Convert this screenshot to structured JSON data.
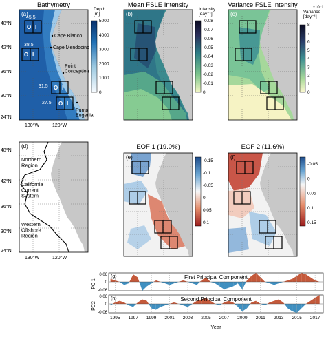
{
  "panels": {
    "a": {
      "letter": "(a)",
      "title": "Bathymetry",
      "cbar_label": "Depth\n[m]",
      "ticks": [
        "5000",
        "4000",
        "3000",
        "2000",
        "1000",
        "0"
      ]
    },
    "b": {
      "letter": "(b)",
      "title": "Mean FSLE Intensity",
      "cbar_label": "Intensity\n[day⁻¹]",
      "ticks": [
        "-0.08",
        "-0.07",
        "-0.06",
        "-0.05",
        "-0.04",
        "-0.03",
        "-0.02",
        "-0.01",
        "0"
      ]
    },
    "c": {
      "letter": "(c)",
      "title": "Variance FSLE Intensity",
      "cbar_label": "Variance\n[day⁻¹]",
      "exponent": "x10⁻³",
      "ticks": [
        "8",
        "7",
        "6",
        "5",
        "4",
        "3",
        "2",
        "1",
        "0"
      ]
    },
    "d": {
      "letter": "(d)"
    },
    "e": {
      "letter": "(e)",
      "title": "EOF 1 (19.0%)",
      "ticks": [
        "-0.15",
        "-0.1",
        "-0.05",
        "0",
        "0.05",
        "0.1"
      ]
    },
    "f": {
      "letter": "(f)",
      "title": "EOF 2 (11.6%)",
      "ticks": [
        "-0.05",
        "0",
        "0.05",
        "0.1",
        "0.15"
      ]
    }
  },
  "map": {
    "lat_labels": [
      "48°N",
      "42°N",
      "36°N",
      "30°N",
      "24°N"
    ],
    "lon_labels": [
      "130°W",
      "120°W"
    ]
  },
  "bathy_annotations": {
    "places": [
      "Cape Blanco",
      "Cape Mendocino",
      "Point\nConception",
      "Punta\nEugenia"
    ],
    "box_lats": [
      "45.5",
      "38.5",
      "31.5",
      "27.5"
    ],
    "box_marks": [
      "O",
      "I"
    ]
  },
  "regions": [
    "Northern\nRegion",
    "California\nCurrent\nSystem",
    "Western\nOffshore\nRegion"
  ],
  "pc": {
    "g_letter": "(g)",
    "g_title": "First Principal Component",
    "g_ylabel": "PC 1",
    "g_ticks": [
      "0.06",
      "0",
      "-0.06"
    ],
    "h_letter": "(h)",
    "h_title": "Second Principal Component",
    "h_ylabel": "PC2",
    "h_ticks": [
      "0.06",
      "0",
      "-0.06"
    ],
    "xlabel": "Year",
    "years": [
      "1995",
      "1997",
      "1999",
      "2001",
      "2003",
      "2005",
      "2007",
      "2009",
      "2011",
      "2013",
      "2015",
      "2017"
    ]
  },
  "colors": {
    "positive": "#c4593a",
    "negative": "#3f8fc0",
    "land": "#c8c8c8"
  },
  "chart_data": {
    "type": "area",
    "x_label": "Year",
    "x": [
      1994.5,
      1995,
      1995.5,
      1996,
      1996.5,
      1997,
      1997.5,
      1998,
      1998.5,
      1999,
      1999.5,
      2000,
      2000.5,
      2001,
      2001.5,
      2002,
      2002.5,
      2003,
      2003.5,
      2004,
      2004.5,
      2005,
      2005.5,
      2006,
      2006.5,
      2007,
      2007.5,
      2008,
      2008.5,
      2009,
      2009.5,
      2010,
      2010.5,
      2011,
      2011.5,
      2012,
      2012.5,
      2013,
      2013.5,
      2014,
      2014.5,
      2015,
      2015.5,
      2016,
      2016.5,
      2017,
      2017.5
    ],
    "series": [
      {
        "name": "First Principal Component",
        "values": [
          0.02,
          0.01,
          0.0,
          -0.02,
          -0.01,
          0.05,
          0.03,
          -0.06,
          -0.03,
          -0.01,
          0.01,
          0.0,
          -0.01,
          -0.02,
          -0.01,
          0.0,
          0.01,
          0.0,
          -0.01,
          -0.02,
          0.01,
          0.03,
          0.0,
          -0.01,
          -0.03,
          -0.05,
          -0.04,
          -0.03,
          -0.01,
          -0.05,
          0.01,
          0.04,
          0.06,
          0.03,
          0.0,
          -0.01,
          -0.02,
          -0.01,
          0.0,
          0.01,
          0.02,
          0.04,
          0.06,
          0.05,
          0.03,
          0.01,
          0.0
        ],
        "ylim": [
          -0.06,
          0.06
        ]
      },
      {
        "name": "Second Principal Component",
        "values": [
          -0.01,
          0.01,
          0.02,
          0.01,
          -0.01,
          -0.02,
          0.01,
          0.03,
          0.02,
          -0.03,
          -0.04,
          -0.02,
          -0.01,
          0.0,
          0.01,
          0.0,
          -0.01,
          -0.02,
          0.0,
          0.02,
          0.03,
          0.04,
          0.02,
          0.0,
          -0.01,
          0.01,
          0.02,
          0.01,
          -0.02,
          -0.05,
          -0.03,
          0.01,
          0.02,
          0.0,
          -0.01,
          0.01,
          0.02,
          0.03,
          0.01,
          -0.03,
          -0.05,
          -0.06,
          -0.03,
          0.0,
          0.02,
          0.04,
          0.06
        ],
        "ylim": [
          -0.06,
          0.06
        ]
      }
    ]
  }
}
